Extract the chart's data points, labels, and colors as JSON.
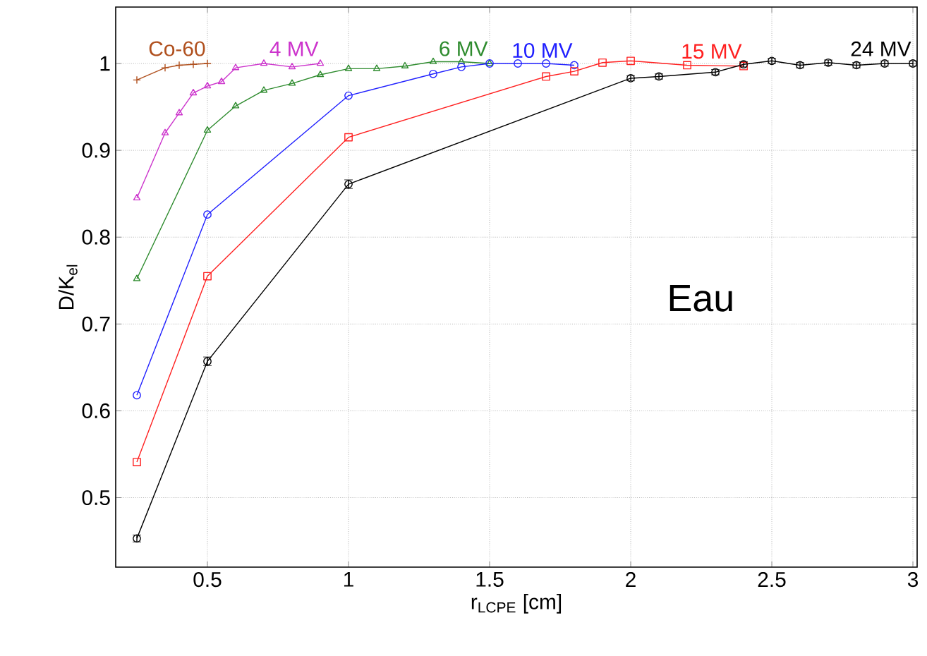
{
  "chart_data": {
    "type": "line",
    "xlabel": "r$_{LCPE}$ [cm]",
    "ylabel": "D/K$_{el}$",
    "xlim": [
      0.175,
      3.015
    ],
    "ylim": [
      0.42,
      1.065
    ],
    "xticks": [
      0.5,
      1,
      1.5,
      2,
      2.5,
      3
    ],
    "yticks": [
      0.5,
      0.6,
      0.7,
      0.8,
      0.9,
      1
    ],
    "grid": true,
    "line_style": "solid",
    "series": [
      {
        "name": "Co-60",
        "color": "#b0501e",
        "marker": "cross",
        "x": [
          0.25,
          0.35,
          0.4,
          0.45,
          0.5
        ],
        "values": [
          0.981,
          0.995,
          0.998,
          0.999,
          1.0
        ]
      },
      {
        "name": "4 MV",
        "color": "#cc33cc",
        "marker": "triangle",
        "x": [
          0.25,
          0.35,
          0.4,
          0.45,
          0.5,
          0.55,
          0.6,
          0.7,
          0.8,
          0.9
        ],
        "values": [
          0.845,
          0.92,
          0.943,
          0.966,
          0.974,
          0.979,
          0.995,
          1.0,
          0.996,
          1.0
        ]
      },
      {
        "name": "6 MV",
        "color": "#2e8b2e",
        "marker": "triangle",
        "x": [
          0.25,
          0.5,
          0.6,
          0.7,
          0.8,
          0.9,
          1.0,
          1.1,
          1.2,
          1.3,
          1.4,
          1.5
        ],
        "values": [
          0.752,
          0.923,
          0.951,
          0.969,
          0.977,
          0.987,
          0.994,
          0.994,
          0.997,
          1.002,
          1.002,
          1.0
        ]
      },
      {
        "name": "10 MV",
        "color": "#2020ff",
        "marker": "circle",
        "x": [
          0.25,
          0.5,
          1.0,
          1.3,
          1.4,
          1.5,
          1.6,
          1.7,
          1.8
        ],
        "values": [
          0.618,
          0.826,
          0.963,
          0.988,
          0.996,
          1.0,
          1.0,
          1.0,
          0.998
        ]
      },
      {
        "name": "15 MV",
        "color": "#ff2020",
        "marker": "square",
        "x": [
          0.25,
          0.5,
          1.0,
          1.7,
          1.8,
          1.9,
          2.0,
          2.2,
          2.4
        ],
        "values": [
          0.541,
          0.755,
          0.915,
          0.985,
          0.991,
          1.001,
          1.003,
          0.998,
          0.997
        ]
      },
      {
        "name": "24 MV",
        "color": "#000000",
        "marker": "circle",
        "x": [
          0.25,
          0.5,
          1.0,
          2.0,
          2.1,
          2.3,
          2.4,
          2.5,
          2.6,
          2.7,
          2.8,
          2.9,
          3.0
        ],
        "values": [
          0.453,
          0.657,
          0.861,
          0.983,
          0.985,
          0.99,
          0.999,
          1.003,
          0.998,
          1.001,
          0.998,
          1.0,
          1.0
        ],
        "errors": [
          0.004,
          0.005,
          0.005,
          0.003,
          0.003,
          0.003,
          0.003,
          0.003,
          0.003,
          0.003,
          0.003,
          0.003,
          0.003
        ]
      }
    ],
    "annotations": [
      "Eau"
    ]
  }
}
